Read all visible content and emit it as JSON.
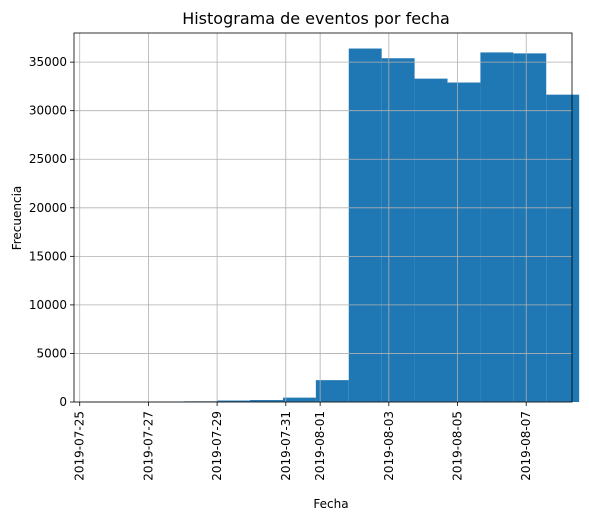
{
  "chart_data": {
    "type": "bar",
    "title": "Histograma de eventos por fecha",
    "xlabel": "Fecha",
    "ylabel": "Frecuencia",
    "grid": true,
    "bar_color": "#1f77b4",
    "grid_color": "#b0b0b0",
    "x_range": [
      "2019-07-24T20:00:00",
      "2019-08-08T08:00:00"
    ],
    "ylim": [
      0,
      38000
    ],
    "x_ticks": [
      "2019-07-25",
      "2019-07-27",
      "2019-07-29",
      "2019-07-31",
      "2019-08-01",
      "2019-08-03",
      "2019-08-05",
      "2019-08-07"
    ],
    "y_ticks": [
      0,
      5000,
      10000,
      15000,
      20000,
      25000,
      30000,
      35000
    ],
    "bins": [
      {
        "start": "2019-07-25T04:00:00",
        "end": "2019-07-26T03:00:00",
        "value": 10
      },
      {
        "start": "2019-07-26T03:00:00",
        "end": "2019-07-27T02:00:00",
        "value": 20
      },
      {
        "start": "2019-07-27T02:00:00",
        "end": "2019-07-28T01:00:00",
        "value": 40
      },
      {
        "start": "2019-07-28T01:00:00",
        "end": "2019-07-29T00:00:00",
        "value": 70
      },
      {
        "start": "2019-07-29T00:00:00",
        "end": "2019-07-29T23:00:00",
        "value": 150
      },
      {
        "start": "2019-07-29T23:00:00",
        "end": "2019-07-30T22:00:00",
        "value": 200
      },
      {
        "start": "2019-07-30T22:00:00",
        "end": "2019-07-31T21:00:00",
        "value": 450
      },
      {
        "start": "2019-07-31T21:00:00",
        "end": "2019-08-01T20:00:00",
        "value": 2250
      },
      {
        "start": "2019-08-01T20:00:00",
        "end": "2019-08-02T19:00:00",
        "value": 36400
      },
      {
        "start": "2019-08-02T19:00:00",
        "end": "2019-08-03T18:00:00",
        "value": 35400
      },
      {
        "start": "2019-08-03T18:00:00",
        "end": "2019-08-04T17:00:00",
        "value": 33300
      },
      {
        "start": "2019-08-04T17:00:00",
        "end": "2019-08-05T16:00:00",
        "value": 32900
      },
      {
        "start": "2019-08-05T16:00:00",
        "end": "2019-08-06T15:00:00",
        "value": 36000
      },
      {
        "start": "2019-08-06T15:00:00",
        "end": "2019-08-07T14:00:00",
        "value": 35900
      },
      {
        "start": "2019-08-07T14:00:00",
        "end": "2019-08-08T13:00:00",
        "value": 31650
      }
    ]
  }
}
